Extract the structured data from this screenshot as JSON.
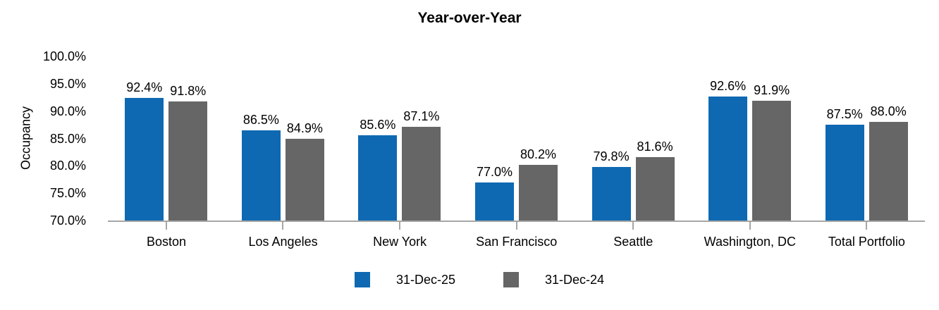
{
  "chart_data": {
    "type": "bar",
    "title": "Year-over-Year",
    "ylabel": "Occupancy",
    "categories": [
      "Boston",
      "Los Angeles",
      "New York",
      "San Francisco",
      "Seattle",
      "Washington, DC",
      "Total Portfolio"
    ],
    "series": [
      {
        "name": "31-Dec-25",
        "color": "#0e69b2",
        "values": [
          92.4,
          86.5,
          85.6,
          77.0,
          79.8,
          92.6,
          87.5
        ]
      },
      {
        "name": "31-Dec-24",
        "color": "#666666",
        "values": [
          91.8,
          84.9,
          87.1,
          80.2,
          81.6,
          91.9,
          88.0
        ]
      }
    ],
    "ylim": [
      70,
      100
    ],
    "ytick_step": 5,
    "ytick_labels": [
      "100.0%",
      "95.0%",
      "90.0%",
      "85.0%",
      "80.0%",
      "75.0%",
      "70.0%"
    ],
    "data_label_suffix": "%",
    "grid": false,
    "legend_position": "bottom",
    "axis_color": "#a6a6a6",
    "text_color": "#000000"
  }
}
